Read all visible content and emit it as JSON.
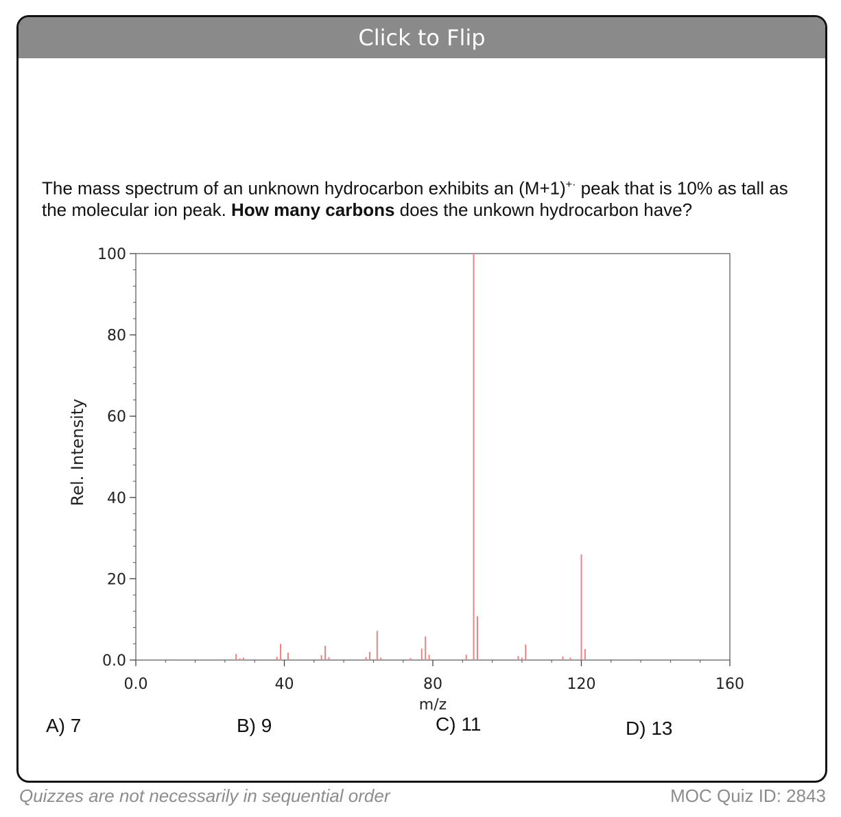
{
  "card": {
    "header": "Click to Flip",
    "question": {
      "part1": "The mass spectrum of an unknown hydrocarbon exhibits an (M+1)",
      "superscript": "+·",
      "part2": " peak that is 10% as tall as the molecular ion peak. ",
      "bold": "How many carbons",
      "part3": " does the unkown hydrocarbon have?"
    },
    "options": [
      {
        "label": "A) 7"
      },
      {
        "label": "B) 9"
      },
      {
        "label": "C) 11"
      },
      {
        "label": "D) 13"
      }
    ]
  },
  "chart_data": {
    "type": "bar",
    "xlabel": "m/z",
    "ylabel": "Rel. Intensity",
    "xlim": [
      0,
      160
    ],
    "ylim": [
      0,
      100
    ],
    "x_ticks": [
      "0.0",
      "40",
      "80",
      "120",
      "160"
    ],
    "y_ticks": [
      "0.0",
      "20",
      "40",
      "60",
      "80",
      "100"
    ],
    "grid": false,
    "color": "#f08080",
    "peaks": [
      {
        "x": 27,
        "y": 1.5
      },
      {
        "x": 28,
        "y": 0.4
      },
      {
        "x": 29,
        "y": 0.6
      },
      {
        "x": 38,
        "y": 0.8
      },
      {
        "x": 39,
        "y": 4.0
      },
      {
        "x": 41,
        "y": 1.8
      },
      {
        "x": 50,
        "y": 1.2
      },
      {
        "x": 51,
        "y": 3.5
      },
      {
        "x": 52,
        "y": 0.7
      },
      {
        "x": 62,
        "y": 0.7
      },
      {
        "x": 63,
        "y": 2.0
      },
      {
        "x": 65,
        "y": 7.2
      },
      {
        "x": 66,
        "y": 0.6
      },
      {
        "x": 74,
        "y": 0.5
      },
      {
        "x": 77,
        "y": 2.8
      },
      {
        "x": 78,
        "y": 5.8
      },
      {
        "x": 79,
        "y": 1.3
      },
      {
        "x": 89,
        "y": 1.3
      },
      {
        "x": 91,
        "y": 100
      },
      {
        "x": 92,
        "y": 10.8
      },
      {
        "x": 103,
        "y": 1.0
      },
      {
        "x": 104,
        "y": 0.6
      },
      {
        "x": 105,
        "y": 3.8
      },
      {
        "x": 115,
        "y": 0.9
      },
      {
        "x": 117,
        "y": 0.6
      },
      {
        "x": 120,
        "y": 26
      },
      {
        "x": 121,
        "y": 2.7
      }
    ]
  },
  "footer": {
    "note": "Quizzes are not necessarily in sequential order",
    "quiz_id": "MOC Quiz ID: 2843"
  }
}
